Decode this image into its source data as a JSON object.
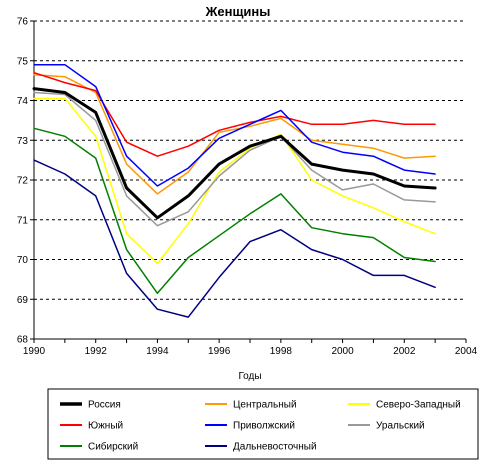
{
  "chart_data": {
    "type": "line",
    "title": "Женщины",
    "xlabel": "Годы",
    "ylabel": "",
    "xlim": [
      1990,
      2004
    ],
    "ylim": [
      68,
      76
    ],
    "x_ticks": [
      "1990",
      "1992",
      "1994",
      "1996",
      "1998",
      "2000",
      "2002",
      "2004"
    ],
    "y_ticks": [
      "68",
      "69",
      "70",
      "71",
      "72",
      "73",
      "74",
      "75",
      "76"
    ],
    "grid": "horizontal dashed",
    "legend_position": "bottom",
    "x": [
      1990,
      1991,
      1992,
      1993,
      1994,
      1995,
      1996,
      1997,
      1998,
      1999,
      2000,
      2001,
      2002,
      2003
    ],
    "series": [
      {
        "name": "Россия",
        "color": "#000000",
        "width": 3,
        "values": [
          74.3,
          74.2,
          73.7,
          71.8,
          71.05,
          71.6,
          72.4,
          72.85,
          73.1,
          72.4,
          72.25,
          72.15,
          71.85,
          71.8
        ]
      },
      {
        "name": "Центральный",
        "color": "#ff9900",
        "width": 1.5,
        "values": [
          74.65,
          74.6,
          74.2,
          72.4,
          71.65,
          72.2,
          73.2,
          73.35,
          73.55,
          73.0,
          72.9,
          72.8,
          72.55,
          72.6
        ]
      },
      {
        "name": "Северо-Западный",
        "color": "#ffff00",
        "width": 1.5,
        "values": [
          74.05,
          74.05,
          73.1,
          70.65,
          69.9,
          70.9,
          72.2,
          72.8,
          73.15,
          72.0,
          71.6,
          71.3,
          70.95,
          70.65
        ]
      },
      {
        "name": "Южный",
        "color": "#ff0000",
        "width": 1.5,
        "values": [
          74.7,
          74.45,
          74.25,
          72.95,
          72.6,
          72.85,
          73.25,
          73.45,
          73.6,
          73.4,
          73.4,
          73.5,
          73.4,
          73.4
        ]
      },
      {
        "name": "Приволжский",
        "color": "#0000ff",
        "width": 1.5,
        "values": [
          74.9,
          74.9,
          74.35,
          72.6,
          71.85,
          72.3,
          73.05,
          73.4,
          73.75,
          72.95,
          72.7,
          72.6,
          72.25,
          72.15
        ]
      },
      {
        "name": "Уральский",
        "color": "#999999",
        "width": 1.5,
        "values": [
          74.2,
          74.15,
          73.5,
          71.6,
          70.85,
          71.2,
          72.1,
          72.75,
          73.1,
          72.25,
          71.75,
          71.9,
          71.5,
          71.45
        ]
      },
      {
        "name": "Сибирский",
        "color": "#008000",
        "width": 1.5,
        "values": [
          73.3,
          73.1,
          72.55,
          70.25,
          69.15,
          70.05,
          70.6,
          71.15,
          71.65,
          70.8,
          70.65,
          70.55,
          70.05,
          69.95
        ]
      },
      {
        "name": "Дальневосточный",
        "color": "#000080",
        "width": 1.5,
        "values": [
          72.5,
          72.15,
          71.6,
          69.65,
          68.75,
          68.55,
          69.55,
          70.45,
          70.75,
          70.25,
          70.0,
          69.6,
          69.6,
          69.3
        ]
      }
    ]
  }
}
